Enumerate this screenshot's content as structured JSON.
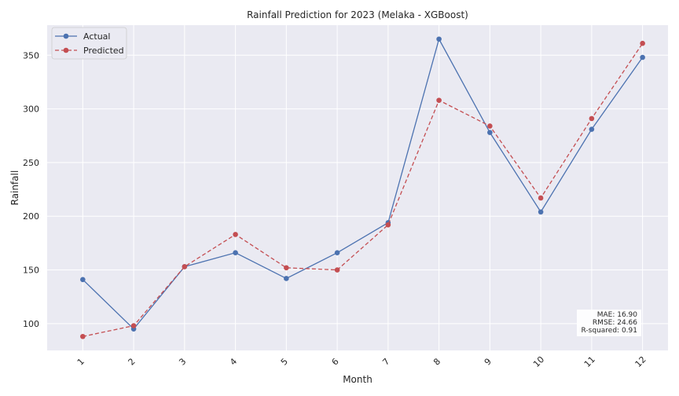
{
  "chart_data": {
    "type": "line",
    "title": "Rainfall Prediction for 2023 (Melaka - XGBoost)",
    "xlabel": "Month",
    "ylabel": "Rainfall",
    "x": [
      "1",
      "2",
      "3",
      "4",
      "5",
      "6",
      "7",
      "8",
      "9",
      "10",
      "11",
      "12"
    ],
    "series": [
      {
        "name": "Actual",
        "values": [
          141,
          95,
          153,
          166,
          142,
          166,
          194,
          365,
          278,
          204,
          281,
          348
        ],
        "color": "#4c72b0",
        "style": "solid",
        "marker": "circle"
      },
      {
        "name": "Predicted",
        "values": [
          88,
          98,
          153,
          183,
          152,
          150,
          192,
          308,
          284,
          217,
          291,
          361
        ],
        "color": "#c44e52",
        "style": "dashed",
        "marker": "circle"
      }
    ],
    "ylim": [
      75,
      378
    ],
    "xlim": [
      0.3,
      12.5
    ],
    "yticks": [
      100,
      150,
      200,
      250,
      300,
      350
    ],
    "grid": true,
    "legend": "top-left",
    "background": "#eaeaf2",
    "metrics": [
      "MAE: 16.90",
      "RMSE: 24.66",
      "R-squared: 0.91"
    ]
  }
}
